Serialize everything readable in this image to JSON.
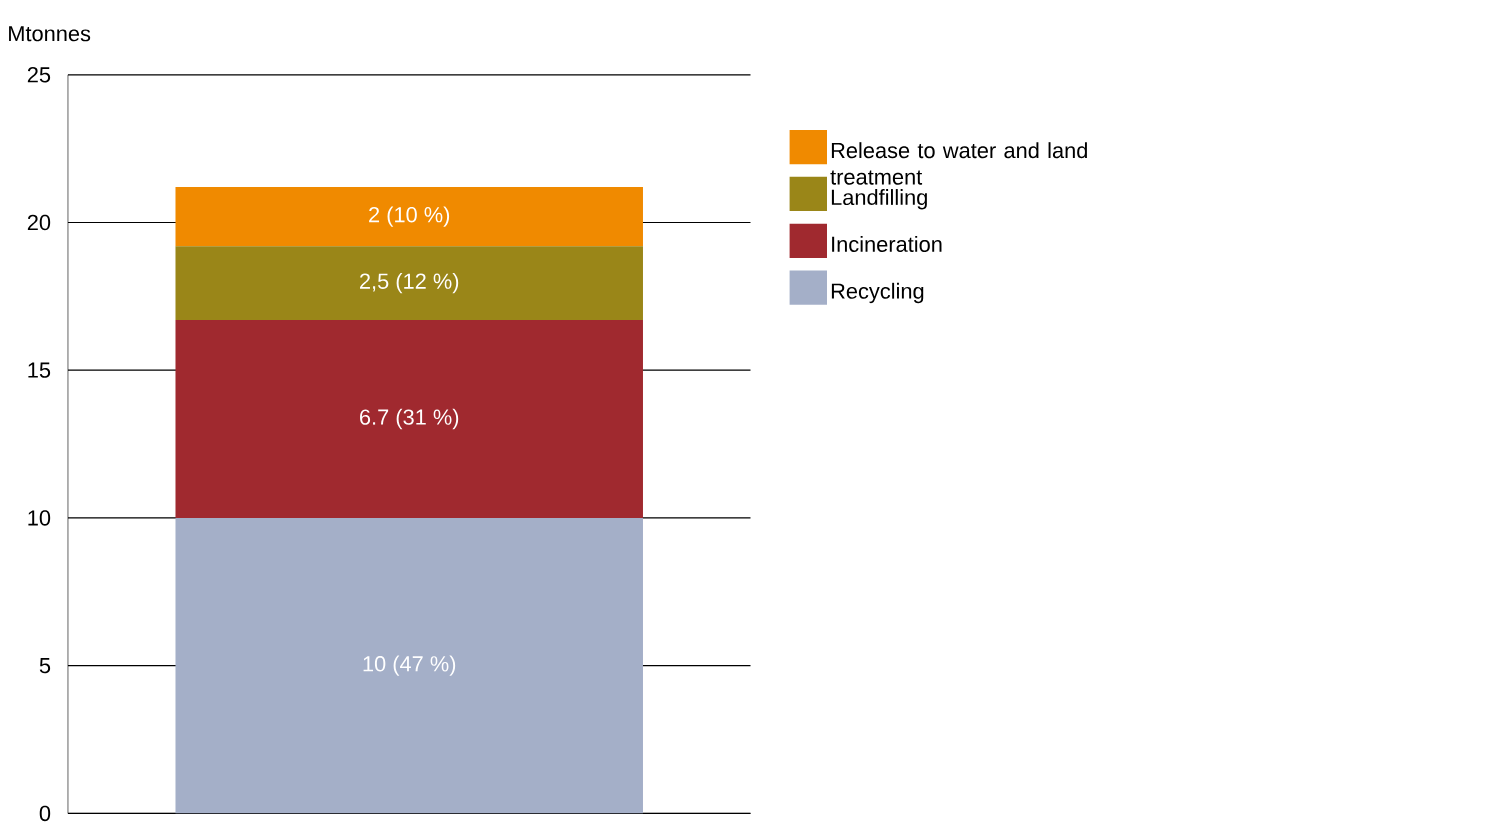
{
  "chart_data": {
    "type": "bar",
    "stacked": true,
    "ylabel": "Mtonnes",
    "categories": [
      null
    ],
    "series": [
      {
        "name": "Recycling",
        "color": "#a4afc8",
        "values": [
          10
        ],
        "value_labels": [
          "10 (47 %)"
        ]
      },
      {
        "name": "Incineration",
        "color": "#a0292f",
        "values": [
          6.7
        ],
        "value_labels": [
          "6.7 (31 %)"
        ]
      },
      {
        "name": "Landfilling",
        "color": "#9a8618",
        "values": [
          2.5
        ],
        "value_labels": [
          "2,5 (12 %)"
        ]
      },
      {
        "name": "Release to water and land treatment",
        "color": "#f08a00",
        "values": [
          2
        ],
        "value_labels": [
          "2 (10 %)"
        ]
      }
    ],
    "ylim": [
      0,
      25
    ],
    "yticks": [
      0,
      5,
      10,
      15,
      20,
      25
    ],
    "grid": "y",
    "legend": "right"
  }
}
